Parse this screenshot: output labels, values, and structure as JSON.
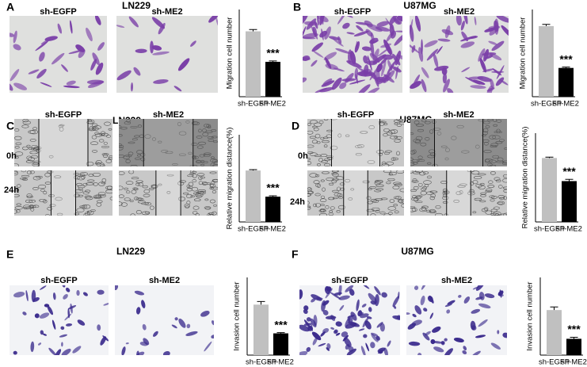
{
  "panels": [
    {
      "letter": "A",
      "title": "LN229",
      "image_labels": [
        "sh-EGFP",
        "sh-ME2"
      ]
    },
    {
      "letter": "B",
      "title": "U87MG",
      "image_labels": [
        "sh-EGFP",
        "sh-ME2"
      ]
    },
    {
      "letter": "C",
      "title": "LN229",
      "image_labels": [
        "sh-EGFP",
        "sh-ME2"
      ],
      "time_labels": [
        "0h",
        "24h"
      ]
    },
    {
      "letter": "D",
      "title": "U87MG",
      "image_labels": [
        "sh-EGFP",
        "sh-ME2"
      ],
      "time_labels": [
        "0h",
        "24h"
      ]
    },
    {
      "letter": "E",
      "title": "LN229",
      "image_labels": [
        "sh-EGFP",
        "sh-ME2"
      ]
    },
    {
      "letter": "F",
      "title": "U87MG",
      "image_labels": [
        "sh-EGFP",
        "sh-ME2"
      ]
    }
  ],
  "chart_data": [
    {
      "type": "bar",
      "y_label": "Migration cell number",
      "categories": [
        "sh-EGFP",
        "sh-ME2"
      ],
      "values": [
        75,
        40
      ],
      "errors": [
        2,
        1
      ],
      "colors": [
        "#c0c0c0",
        "#000000"
      ],
      "annotation": "***",
      "ylim": [
        0,
        100
      ]
    },
    {
      "type": "bar",
      "y_label": "Migration cell number",
      "categories": [
        "sh-EGFP",
        "sh-ME2"
      ],
      "values": [
        81,
        33
      ],
      "errors": [
        2,
        1
      ],
      "colors": [
        "#c0c0c0",
        "#000000"
      ],
      "annotation": "***",
      "ylim": [
        0,
        100
      ]
    },
    {
      "type": "bar",
      "y_label": "Relative migration distance(%)",
      "categories": [
        "sh-EGFP",
        "sh-ME2"
      ],
      "values": [
        59,
        29
      ],
      "errors": [
        1,
        1
      ],
      "colors": [
        "#c0c0c0",
        "#000000"
      ],
      "annotation": "***",
      "ylim": [
        0,
        100
      ]
    },
    {
      "type": "bar",
      "y_label": "Relative migration distance(%)",
      "categories": [
        "sh-EGFP",
        "sh-ME2"
      ],
      "values": [
        72,
        46
      ],
      "errors": [
        1,
        2
      ],
      "colors": [
        "#c0c0c0",
        "#000000"
      ],
      "annotation": "***",
      "ylim": [
        0,
        100
      ]
    },
    {
      "type": "bar",
      "y_label": "Invasion cell number",
      "categories": [
        "sh-EGFP",
        "sh-ME2"
      ],
      "values": [
        65,
        28
      ],
      "errors": [
        4,
        1
      ],
      "colors": [
        "#c0c0c0",
        "#000000"
      ],
      "annotation": "***",
      "ylim": [
        0,
        100
      ]
    },
    {
      "type": "bar",
      "y_label": "Invasion cell number",
      "categories": [
        "sh-EGFP",
        "sh-ME2"
      ],
      "values": [
        58,
        21
      ],
      "errors": [
        4,
        2
      ],
      "colors": [
        "#c0c0c0",
        "#000000"
      ],
      "annotation": "***",
      "ylim": [
        0,
        100
      ]
    }
  ]
}
